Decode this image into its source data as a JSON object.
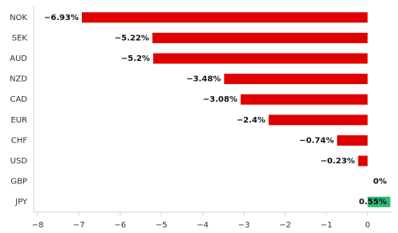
{
  "chart_data": {
    "type": "hbar",
    "categories": [
      "NOK",
      "SEK",
      "AUD",
      "NZD",
      "CAD",
      "EUR",
      "CHF",
      "USD",
      "GBP",
      "JPY"
    ],
    "values": [
      -6.93,
      -5.22,
      -5.2,
      -3.48,
      -3.08,
      -2.4,
      -0.74,
      -0.23,
      0,
      0.55
    ],
    "value_labels": [
      "−6.93%",
      "−5.22%",
      "−5.2%",
      "−3.48%",
      "−3.08%",
      "−2.4%",
      "−0.74%",
      "−0.23%",
      "0%",
      "0.55%"
    ],
    "colors": [
      "#e00000",
      "#e00000",
      "#e00000",
      "#e00000",
      "#e00000",
      "#e00000",
      "#e00000",
      "#e00000",
      "#e00000",
      "#2eb872"
    ],
    "xlim": [
      -8,
      0.6
    ],
    "xticks": [
      {
        "value": -8,
        "label": "−8"
      },
      {
        "value": -7,
        "label": "−7"
      },
      {
        "value": -6,
        "label": "−6"
      },
      {
        "value": -5,
        "label": "−5"
      },
      {
        "value": -4,
        "label": "−4"
      },
      {
        "value": -3,
        "label": "−3"
      },
      {
        "value": -2,
        "label": "−2"
      },
      {
        "value": -1,
        "label": "−1"
      },
      0
    ]
  }
}
